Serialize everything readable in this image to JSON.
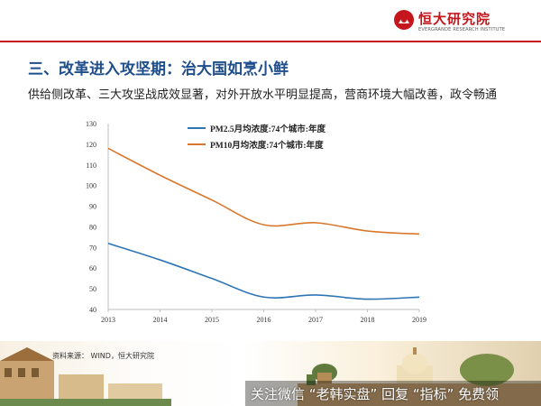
{
  "brand": {
    "name": "恒大研究院",
    "sub": "EVERGRANDE RESEARCH INSTITUTE",
    "color": "#c4161c"
  },
  "page": {
    "title": "三、改革进入攻坚期：治大国如烹小鲜",
    "subtitle": "供给侧改革、三大攻坚战成效显著，对外开放水平明显提高，营商环境大幅改善，政令畅通",
    "source": "资料来源： WIND，恒大研究院",
    "watermark": "关注微信 “老韩实盘” 回复 “指标” 免费领"
  },
  "chart_data": {
    "type": "line",
    "x": [
      "2013",
      "2014",
      "2015",
      "2016",
      "2017",
      "2018",
      "2019"
    ],
    "series": [
      {
        "name": "PM2.5月均浓度:74个城市:年度",
        "values": [
          72,
          64,
          55,
          46,
          47,
          45,
          46
        ],
        "color": "#2e75b6"
      },
      {
        "name": "PM10月均浓度:74个城市:年度",
        "values": [
          118,
          105,
          93,
          81,
          82,
          78,
          76.5
        ],
        "color": "#d9782d"
      }
    ],
    "ylim": [
      40,
      130
    ],
    "yticks": [
      "40",
      "50",
      "60",
      "70",
      "80",
      "90",
      "100",
      "110",
      "120",
      "130"
    ],
    "xlabel": "",
    "ylabel": "",
    "grid": false,
    "legend": "top-left"
  }
}
